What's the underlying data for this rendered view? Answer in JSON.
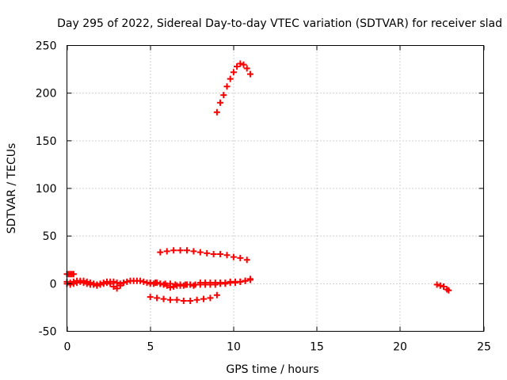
{
  "chart_data": {
    "type": "scatter",
    "title": "Day 295 of 2022, Sidereal Day-to-day VTEC variation (SDTVAR) for receiver slad",
    "xlabel": "GPS time / hours",
    "ylabel": "SDTVAR / TECUs",
    "xlim": [
      0,
      25
    ],
    "ylim": [
      -50,
      250
    ],
    "xticks": [
      0,
      5,
      10,
      15,
      20,
      25
    ],
    "yticks": [
      -50,
      0,
      50,
      100,
      150,
      200,
      250
    ],
    "grid": true,
    "marker": "plus",
    "color": "#ff0000",
    "series": [
      {
        "points": [
          [
            0.0,
            10
          ],
          [
            0.1,
            10
          ],
          [
            0.2,
            10
          ],
          [
            0.3,
            10
          ],
          [
            0.4,
            10
          ]
        ]
      },
      {
        "points": [
          [
            0.0,
            2
          ],
          [
            0.2,
            1
          ],
          [
            0.4,
            2
          ],
          [
            0.6,
            3
          ],
          [
            0.8,
            3
          ],
          [
            1.0,
            3
          ],
          [
            1.2,
            2
          ],
          [
            1.4,
            1
          ],
          [
            1.6,
            0
          ],
          [
            1.8,
            -1
          ],
          [
            2.0,
            0
          ],
          [
            2.2,
            1
          ],
          [
            2.4,
            2
          ],
          [
            2.6,
            0
          ],
          [
            2.8,
            -3
          ],
          [
            3.0,
            -5
          ],
          [
            3.2,
            -2
          ],
          [
            3.4,
            1
          ],
          [
            3.6,
            2
          ],
          [
            3.8,
            3
          ],
          [
            4.0,
            3
          ],
          [
            4.2,
            3
          ],
          [
            4.4,
            3
          ],
          [
            4.6,
            2
          ],
          [
            4.8,
            1
          ],
          [
            5.0,
            0
          ],
          [
            5.2,
            0
          ],
          [
            5.4,
            1
          ],
          [
            5.6,
            0
          ],
          [
            5.8,
            -1
          ],
          [
            6.0,
            -2
          ],
          [
            6.2,
            -4
          ],
          [
            6.4,
            -3
          ],
          [
            6.6,
            -2
          ],
          [
            6.8,
            -2
          ],
          [
            7.0,
            -2
          ],
          [
            7.2,
            -1
          ],
          [
            7.4,
            -1
          ],
          [
            7.6,
            -2
          ]
        ]
      },
      {
        "points": [
          [
            0.0,
            0
          ],
          [
            0.2,
            -1
          ],
          [
            0.4,
            0
          ],
          [
            0.6,
            1
          ],
          [
            0.8,
            2
          ],
          [
            1.0,
            1
          ],
          [
            1.2,
            0
          ],
          [
            1.4,
            -1
          ],
          [
            1.6,
            -1
          ],
          [
            1.8,
            -2
          ],
          [
            2.0,
            -1
          ],
          [
            2.2,
            0
          ],
          [
            2.4,
            1
          ],
          [
            2.6,
            2
          ],
          [
            2.8,
            2
          ],
          [
            3.0,
            1
          ],
          [
            3.2,
            0
          ]
        ]
      },
      {
        "points": [
          [
            5.0,
            1
          ],
          [
            5.3,
            1
          ],
          [
            5.6,
            0
          ],
          [
            5.9,
            0
          ],
          [
            6.2,
            0
          ],
          [
            6.5,
            -1
          ],
          [
            6.8,
            -1
          ],
          [
            7.1,
            -1
          ],
          [
            7.4,
            -1
          ],
          [
            7.7,
            -1
          ],
          [
            8.0,
            -1
          ],
          [
            8.3,
            -1
          ],
          [
            8.6,
            -1
          ],
          [
            8.9,
            -1
          ],
          [
            9.2,
            0
          ],
          [
            9.5,
            0
          ],
          [
            9.8,
            1
          ],
          [
            10.1,
            1
          ],
          [
            10.4,
            2
          ],
          [
            10.7,
            3
          ],
          [
            11.0,
            4
          ]
        ]
      },
      {
        "points": [
          [
            8.0,
            1
          ],
          [
            8.3,
            1
          ],
          [
            8.6,
            1
          ],
          [
            8.9,
            1
          ],
          [
            9.2,
            1
          ],
          [
            9.5,
            1
          ],
          [
            9.8,
            2
          ],
          [
            10.1,
            2
          ],
          [
            10.4,
            2
          ],
          [
            10.7,
            3
          ],
          [
            11.0,
            5
          ]
        ]
      },
      {
        "points": [
          [
            5.6,
            33
          ],
          [
            6.0,
            34
          ],
          [
            6.4,
            35
          ],
          [
            6.8,
            35
          ],
          [
            7.2,
            35
          ],
          [
            7.6,
            34
          ],
          [
            8.0,
            33
          ],
          [
            8.4,
            32
          ],
          [
            8.8,
            31
          ],
          [
            9.2,
            31
          ],
          [
            9.6,
            30
          ],
          [
            10.0,
            28
          ],
          [
            10.4,
            27
          ],
          [
            10.8,
            25
          ]
        ]
      },
      {
        "points": [
          [
            5.0,
            -14
          ],
          [
            5.4,
            -15
          ],
          [
            5.8,
            -16
          ],
          [
            6.2,
            -17
          ],
          [
            6.6,
            -17
          ],
          [
            7.0,
            -18
          ],
          [
            7.4,
            -18
          ],
          [
            7.8,
            -17
          ],
          [
            8.2,
            -16
          ],
          [
            8.6,
            -15
          ],
          [
            9.0,
            -12
          ]
        ]
      },
      {
        "points": [
          [
            9.0,
            180
          ],
          [
            9.2,
            190
          ],
          [
            9.4,
            198
          ],
          [
            9.6,
            207
          ],
          [
            9.8,
            215
          ],
          [
            10.0,
            222
          ],
          [
            10.2,
            228
          ],
          [
            10.4,
            231
          ],
          [
            10.6,
            230
          ],
          [
            10.8,
            226
          ],
          [
            11.0,
            220
          ]
        ]
      },
      {
        "points": [
          [
            22.2,
            -1
          ],
          [
            22.4,
            -2
          ],
          [
            22.6,
            -3
          ],
          [
            22.8,
            -6
          ],
          [
            22.9,
            -7
          ]
        ]
      }
    ]
  }
}
